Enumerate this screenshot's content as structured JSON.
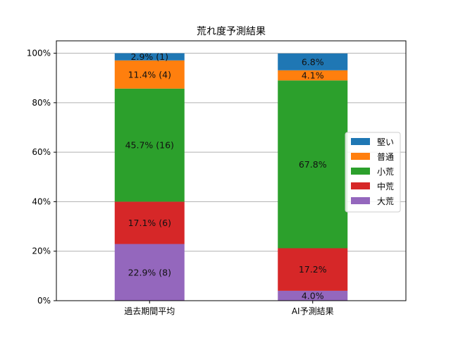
{
  "chart_data": {
    "type": "bar",
    "stacked": true,
    "percent": true,
    "title": "荒れ度予測結果",
    "xlabel": "",
    "ylabel": "",
    "ylim": [
      0,
      100
    ],
    "yticks": [
      "0%",
      "20%",
      "40%",
      "60%",
      "80%",
      "100%"
    ],
    "grid": "horizontal",
    "legend_position": "right",
    "categories": [
      "過去期間平均",
      "AI予測結果"
    ],
    "series": [
      {
        "name": "大荒",
        "color": "#9467bd",
        "values": [
          22.9,
          4.0
        ],
        "labels": [
          "22.9% (8)",
          "4.0%"
        ]
      },
      {
        "name": "中荒",
        "color": "#d62728",
        "values": [
          17.1,
          17.2
        ],
        "labels": [
          "17.1% (6)",
          "17.2%"
        ]
      },
      {
        "name": "小荒",
        "color": "#2ca02c",
        "values": [
          45.7,
          67.8
        ],
        "labels": [
          "45.7% (16)",
          "67.8%"
        ]
      },
      {
        "name": "普通",
        "color": "#ff7f0e",
        "values": [
          11.4,
          4.1
        ],
        "labels": [
          "11.4% (4)",
          "4.1%"
        ]
      },
      {
        "name": "堅い",
        "color": "#1f77b4",
        "values": [
          2.9,
          6.8
        ],
        "labels": [
          "2.9% (1)",
          "6.8%"
        ]
      }
    ],
    "legend_order": [
      "堅い",
      "普通",
      "小荒",
      "中荒",
      "大荒"
    ]
  }
}
